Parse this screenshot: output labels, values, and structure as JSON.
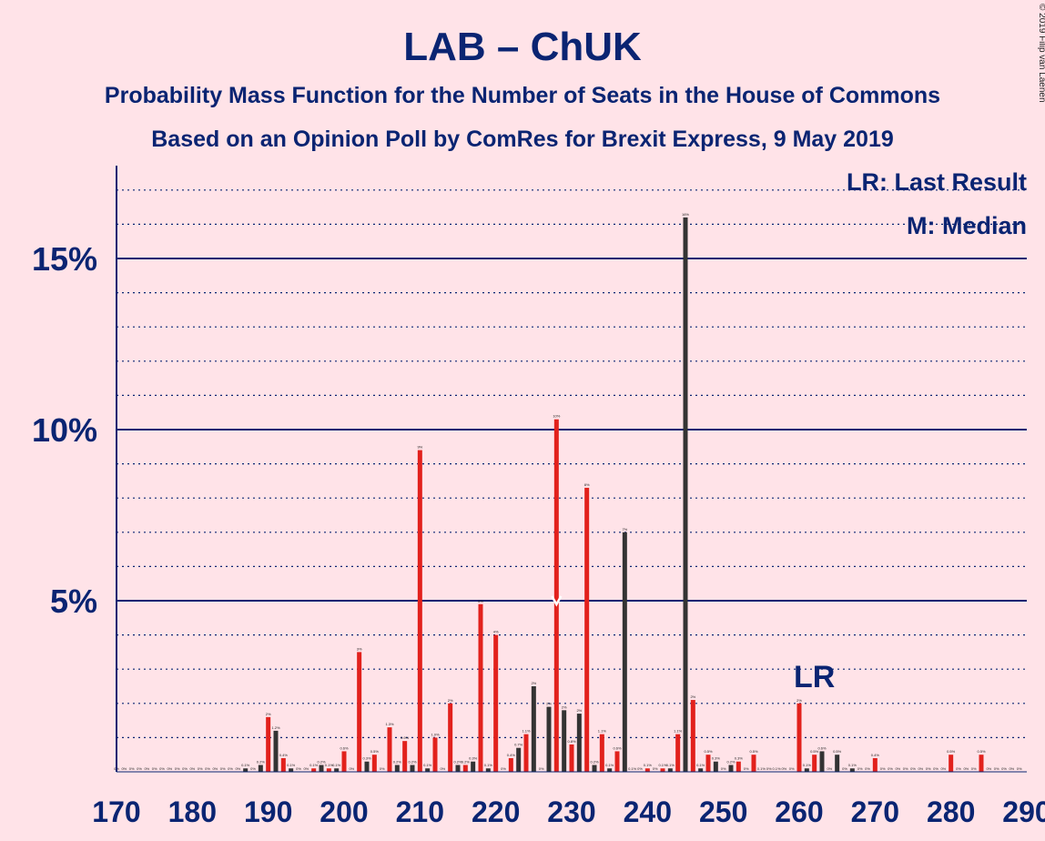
{
  "chart_data": {
    "type": "bar",
    "title": "LAB – ChUK",
    "subtitle1": "Probability Mass Function for the Number of Seats in the House of Commons",
    "subtitle2": "Based on an Opinion Poll by ComRes for Brexit Express, 9 May 2019",
    "copyright": "© 2019 Filip van Laenen",
    "legend": {
      "lr": "LR: Last Result",
      "median": "M: Median",
      "placement": "top-right"
    },
    "lr_label": "LR",
    "median_marker": "M",
    "xlim": [
      170,
      290
    ],
    "ylim": [
      0,
      17.5
    ],
    "x_ticks": [
      "170",
      "180",
      "190",
      "200",
      "210",
      "220",
      "230",
      "240",
      "250",
      "260",
      "270",
      "280",
      "290"
    ],
    "y_ticks": [
      {
        "value": 5,
        "label": "5%"
      },
      {
        "value": 10,
        "label": "10%"
      },
      {
        "value": 15,
        "label": "15%"
      }
    ],
    "median_seat": 228,
    "last_result_seat": 262,
    "series": {
      "lab": {
        "color": "#e2211c"
      },
      "chuk": {
        "color": "#333333"
      }
    },
    "bars": [
      {
        "x": 170,
        "s": "lab",
        "v": 0,
        "l": "0%"
      },
      {
        "x": 171,
        "s": "chuk",
        "v": 0,
        "l": "0%"
      },
      {
        "x": 172,
        "s": "lab",
        "v": 0,
        "l": "0%"
      },
      {
        "x": 173,
        "s": "chuk",
        "v": 0,
        "l": "0%"
      },
      {
        "x": 174,
        "s": "lab",
        "v": 0,
        "l": "0%"
      },
      {
        "x": 175,
        "s": "chuk",
        "v": 0,
        "l": "0%"
      },
      {
        "x": 176,
        "s": "lab",
        "v": 0,
        "l": "0%"
      },
      {
        "x": 177,
        "s": "chuk",
        "v": 0,
        "l": "0%"
      },
      {
        "x": 178,
        "s": "lab",
        "v": 0,
        "l": "0%"
      },
      {
        "x": 179,
        "s": "chuk",
        "v": 0,
        "l": "0%"
      },
      {
        "x": 180,
        "s": "lab",
        "v": 0,
        "l": "0%"
      },
      {
        "x": 181,
        "s": "chuk",
        "v": 0,
        "l": "0%"
      },
      {
        "x": 182,
        "s": "lab",
        "v": 0,
        "l": "0%"
      },
      {
        "x": 183,
        "s": "chuk",
        "v": 0,
        "l": "0%"
      },
      {
        "x": 184,
        "s": "lab",
        "v": 0,
        "l": "0%"
      },
      {
        "x": 185,
        "s": "chuk",
        "v": 0,
        "l": "0%"
      },
      {
        "x": 186,
        "s": "lab",
        "v": 0,
        "l": "0%"
      },
      {
        "x": 187,
        "s": "chuk",
        "v": 0.1,
        "l": "0.1%"
      },
      {
        "x": 188,
        "s": "lab",
        "v": 0,
        "l": "0%"
      },
      {
        "x": 189,
        "s": "chuk",
        "v": 0.2,
        "l": "0.2%"
      },
      {
        "x": 190,
        "s": "lab",
        "v": 1.6,
        "l": "2%"
      },
      {
        "x": 191,
        "s": "chuk",
        "v": 1.2,
        "l": "1.2%"
      },
      {
        "x": 192,
        "s": "lab",
        "v": 0.4,
        "l": "0.4%"
      },
      {
        "x": 193,
        "s": "chuk",
        "v": 0.1,
        "l": "0.1%"
      },
      {
        "x": 194,
        "s": "lab",
        "v": 0,
        "l": "0%"
      },
      {
        "x": 195,
        "s": "chuk",
        "v": 0,
        "l": "0%"
      },
      {
        "x": 196,
        "s": "lab",
        "v": 0.1,
        "l": "0.1%"
      },
      {
        "x": 197,
        "s": "chuk",
        "v": 0.2,
        "l": "0.2%"
      },
      {
        "x": 198,
        "s": "lab",
        "v": 0.1,
        "l": "0.1%"
      },
      {
        "x": 199,
        "s": "chuk",
        "v": 0.1,
        "l": "0.1%"
      },
      {
        "x": 200,
        "s": "lab",
        "v": 0.6,
        "l": "0.6%"
      },
      {
        "x": 201,
        "s": "chuk",
        "v": 0,
        "l": "0%"
      },
      {
        "x": 202,
        "s": "lab",
        "v": 3.5,
        "l": "3%"
      },
      {
        "x": 203,
        "s": "chuk",
        "v": 0.3,
        "l": "0.3%"
      },
      {
        "x": 204,
        "s": "lab",
        "v": 0.5,
        "l": "0.5%"
      },
      {
        "x": 205,
        "s": "chuk",
        "v": 0,
        "l": "0%"
      },
      {
        "x": 206,
        "s": "lab",
        "v": 1.3,
        "l": "1.3%"
      },
      {
        "x": 207,
        "s": "chuk",
        "v": 0.2,
        "l": "0.2%"
      },
      {
        "x": 208,
        "s": "lab",
        "v": 0.9,
        "l": "0.9%"
      },
      {
        "x": 209,
        "s": "chuk",
        "v": 0.2,
        "l": "0.2%"
      },
      {
        "x": 210,
        "s": "lab",
        "v": 9.4,
        "l": "9%"
      },
      {
        "x": 211,
        "s": "chuk",
        "v": 0.1,
        "l": "0.1%"
      },
      {
        "x": 212,
        "s": "lab",
        "v": 1,
        "l": "1.0%"
      },
      {
        "x": 213,
        "s": "chuk",
        "v": 0,
        "l": "0%"
      },
      {
        "x": 214,
        "s": "lab",
        "v": 2,
        "l": "2%"
      },
      {
        "x": 215,
        "s": "chuk",
        "v": 0.2,
        "l": "0.2%"
      },
      {
        "x": 216,
        "s": "lab",
        "v": 0.2,
        "l": "0.2%"
      },
      {
        "x": 217,
        "s": "chuk",
        "v": 0.3,
        "l": "0.3%"
      },
      {
        "x": 218,
        "s": "lab",
        "v": 4.9,
        "l": "5%"
      },
      {
        "x": 219,
        "s": "chuk",
        "v": 0.1,
        "l": "0.1%"
      },
      {
        "x": 220,
        "s": "lab",
        "v": 4,
        "l": "4%"
      },
      {
        "x": 221,
        "s": "chuk",
        "v": 0,
        "l": "0%"
      },
      {
        "x": 222,
        "s": "lab",
        "v": 0.4,
        "l": "0.4%"
      },
      {
        "x": 223,
        "s": "chuk",
        "v": 0.7,
        "l": "0.7%"
      },
      {
        "x": 224,
        "s": "lab",
        "v": 1.1,
        "l": "1.1%"
      },
      {
        "x": 225,
        "s": "chuk",
        "v": 2.5,
        "l": "2%"
      },
      {
        "x": 226,
        "s": "lab",
        "v": 0,
        "l": "0%"
      },
      {
        "x": 227,
        "s": "chuk",
        "v": 1.9,
        "l": "2%"
      },
      {
        "x": 228,
        "s": "lab",
        "v": 10.3,
        "l": "10%"
      },
      {
        "x": 229,
        "s": "chuk",
        "v": 1.8,
        "l": "2%"
      },
      {
        "x": 230,
        "s": "lab",
        "v": 0.8,
        "l": "0.8%"
      },
      {
        "x": 231,
        "s": "chuk",
        "v": 1.7,
        "l": "2%"
      },
      {
        "x": 232,
        "s": "lab",
        "v": 8.3,
        "l": "8%"
      },
      {
        "x": 233,
        "s": "chuk",
        "v": 0.2,
        "l": "0.2%"
      },
      {
        "x": 234,
        "s": "lab",
        "v": 1.1,
        "l": "1.1%"
      },
      {
        "x": 235,
        "s": "chuk",
        "v": 0.1,
        "l": "0.1%"
      },
      {
        "x": 236,
        "s": "lab",
        "v": 0.6,
        "l": "0.6%"
      },
      {
        "x": 237,
        "s": "chuk",
        "v": 7,
        "l": "7%"
      },
      {
        "x": 238,
        "s": "lab",
        "v": 0,
        "l": "0.1%"
      },
      {
        "x": 239,
        "s": "chuk",
        "v": 0,
        "l": "0%"
      },
      {
        "x": 240,
        "s": "lab",
        "v": 0.1,
        "l": "0.1%"
      },
      {
        "x": 241,
        "s": "chuk",
        "v": 0,
        "l": "0%"
      },
      {
        "x": 242,
        "s": "lab",
        "v": 0.1,
        "l": "0.1%"
      },
      {
        "x": 243,
        "s": "chuk",
        "v": 0.1,
        "l": "0.1%"
      },
      {
        "x": 244,
        "s": "lab",
        "v": 1.1,
        "l": "1.1%"
      },
      {
        "x": 245,
        "s": "chuk",
        "v": 16.2,
        "l": "16%"
      },
      {
        "x": 246,
        "s": "lab",
        "v": 2.1,
        "l": "2%"
      },
      {
        "x": 247,
        "s": "chuk",
        "v": 0.1,
        "l": "0.1%"
      },
      {
        "x": 248,
        "s": "lab",
        "v": 0.5,
        "l": "0.5%"
      },
      {
        "x": 249,
        "s": "chuk",
        "v": 0.3,
        "l": "0.3%"
      },
      {
        "x": 250,
        "s": "lab",
        "v": 0,
        "l": "0%"
      },
      {
        "x": 251,
        "s": "chuk",
        "v": 0.2,
        "l": "0.2%"
      },
      {
        "x": 252,
        "s": "lab",
        "v": 0.3,
        "l": "0.3%"
      },
      {
        "x": 253,
        "s": "chuk",
        "v": 0,
        "l": "0%"
      },
      {
        "x": 254,
        "s": "lab",
        "v": 0.5,
        "l": "0.5%"
      },
      {
        "x": 255,
        "s": "chuk",
        "v": 0,
        "l": "0.1%"
      },
      {
        "x": 256,
        "s": "lab",
        "v": 0,
        "l": "0%"
      },
      {
        "x": 257,
        "s": "chuk",
        "v": 0,
        "l": "0.1%"
      },
      {
        "x": 258,
        "s": "lab",
        "v": 0,
        "l": "0%"
      },
      {
        "x": 259,
        "s": "chuk",
        "v": 0,
        "l": "0%"
      },
      {
        "x": 260,
        "s": "lab",
        "v": 2,
        "l": "2%"
      },
      {
        "x": 261,
        "s": "chuk",
        "v": 0.1,
        "l": "0.1%"
      },
      {
        "x": 262,
        "s": "lab",
        "v": 0.5,
        "l": "0.5%"
      },
      {
        "x": 263,
        "s": "chuk",
        "v": 0.6,
        "l": "0.6%"
      },
      {
        "x": 264,
        "s": "lab",
        "v": 0,
        "l": "0%"
      },
      {
        "x": 265,
        "s": "chuk",
        "v": 0.5,
        "l": "0.5%"
      },
      {
        "x": 266,
        "s": "lab",
        "v": 0,
        "l": "0%"
      },
      {
        "x": 267,
        "s": "chuk",
        "v": 0.1,
        "l": "0.1%"
      },
      {
        "x": 268,
        "s": "lab",
        "v": 0,
        "l": "0%"
      },
      {
        "x": 269,
        "s": "chuk",
        "v": 0,
        "l": "0%"
      },
      {
        "x": 270,
        "s": "lab",
        "v": 0.4,
        "l": "0.4%"
      },
      {
        "x": 271,
        "s": "chuk",
        "v": 0,
        "l": "0%"
      },
      {
        "x": 272,
        "s": "lab",
        "v": 0,
        "l": "0%"
      },
      {
        "x": 273,
        "s": "chuk",
        "v": 0,
        "l": "0%"
      },
      {
        "x": 274,
        "s": "lab",
        "v": 0,
        "l": "0%"
      },
      {
        "x": 275,
        "s": "chuk",
        "v": 0,
        "l": "0%"
      },
      {
        "x": 276,
        "s": "lab",
        "v": 0,
        "l": "0%"
      },
      {
        "x": 277,
        "s": "chuk",
        "v": 0,
        "l": "0%"
      },
      {
        "x": 278,
        "s": "lab",
        "v": 0,
        "l": "0%"
      },
      {
        "x": 279,
        "s": "chuk",
        "v": 0,
        "l": "0%"
      },
      {
        "x": 280,
        "s": "lab",
        "v": 0.5,
        "l": "0.5%"
      },
      {
        "x": 281,
        "s": "chuk",
        "v": 0,
        "l": "0%"
      },
      {
        "x": 282,
        "s": "lab",
        "v": 0,
        "l": "0%"
      },
      {
        "x": 283,
        "s": "chuk",
        "v": 0,
        "l": "0%"
      },
      {
        "x": 284,
        "s": "lab",
        "v": 0.5,
        "l": "0.5%"
      },
      {
        "x": 285,
        "s": "chuk",
        "v": 0,
        "l": "0%"
      },
      {
        "x": 286,
        "s": "lab",
        "v": 0,
        "l": "0%"
      },
      {
        "x": 287,
        "s": "chuk",
        "v": 0,
        "l": "0%"
      },
      {
        "x": 288,
        "s": "lab",
        "v": 0,
        "l": "0%"
      },
      {
        "x": 289,
        "s": "chuk",
        "v": 0,
        "l": "0%"
      }
    ]
  }
}
